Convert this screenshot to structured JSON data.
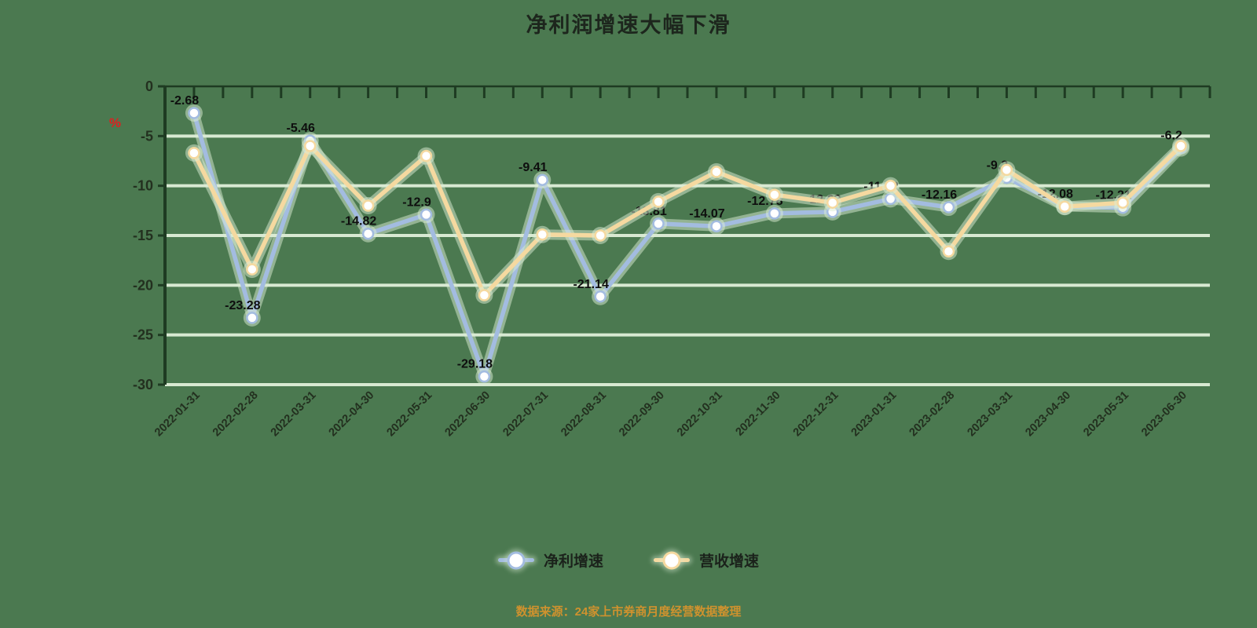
{
  "chart_data": {
    "type": "line",
    "title": "净利润增速大幅下滑",
    "y_unit": "%",
    "y_unit_color": "#e01f1f",
    "ylim": [
      -30,
      0
    ],
    "y_ticks": [
      "0",
      "-5",
      "-10",
      "-15",
      "-20",
      "-25",
      "-30"
    ],
    "grid": true,
    "legend_position": "bottom",
    "source_note": "数据来源：24家上市券商月度经营数据整理",
    "categories": [
      "2022-01-31",
      "2022-02-28",
      "2022-03-31",
      "2022-04-30",
      "2022-05-31",
      "2022-06-30",
      "2022-07-31",
      "2022-08-31",
      "2022-09-30",
      "2022-10-31",
      "2022-11-30",
      "2022-12-31",
      "2023-01-31",
      "2023-02-28",
      "2023-03-31",
      "2023-04-30",
      "2023-05-31",
      "2023-06-30"
    ],
    "series": [
      {
        "name": "净利增速",
        "color": "#a3bce0",
        "values": [
          -2.68,
          -23.28,
          -5.46,
          -14.82,
          -12.9,
          -29.18,
          -9.41,
          -21.14,
          -13.81,
          -14.07,
          -12.78,
          -12.62,
          -11.32,
          -12.16,
          -9.2,
          -12.08,
          -12.21,
          -6.2
        ],
        "labels": [
          "-2.68",
          "-23.28",
          "-5.46",
          "-14.82",
          "-12.9",
          "-29.18",
          "-9.41",
          "-21.14",
          "-13.81",
          "-14.07",
          "-12.78",
          "-12.62",
          "-11.32",
          "-12.16",
          "-9.2",
          "-12.08",
          "-12.21",
          "-6.2"
        ]
      },
      {
        "name": "营收增速",
        "color": "#f5d9a0",
        "values": [
          -6.7,
          -18.4,
          -6.0,
          -12.0,
          -7.0,
          -21.0,
          -14.9,
          -15.0,
          -11.6,
          -8.6,
          -10.9,
          -11.7,
          -10.0,
          -16.6,
          -8.4,
          -12.1,
          -11.7,
          -6.0
        ],
        "labels": null
      }
    ],
    "colors": {
      "background": "#4b7950",
      "gridline": "#d8e9d2",
      "axis": "#1e3b22",
      "data_label": "#0e0e0e",
      "tick_label": "#23301f",
      "title": "#1d261d",
      "caption": "#cf922e"
    }
  }
}
